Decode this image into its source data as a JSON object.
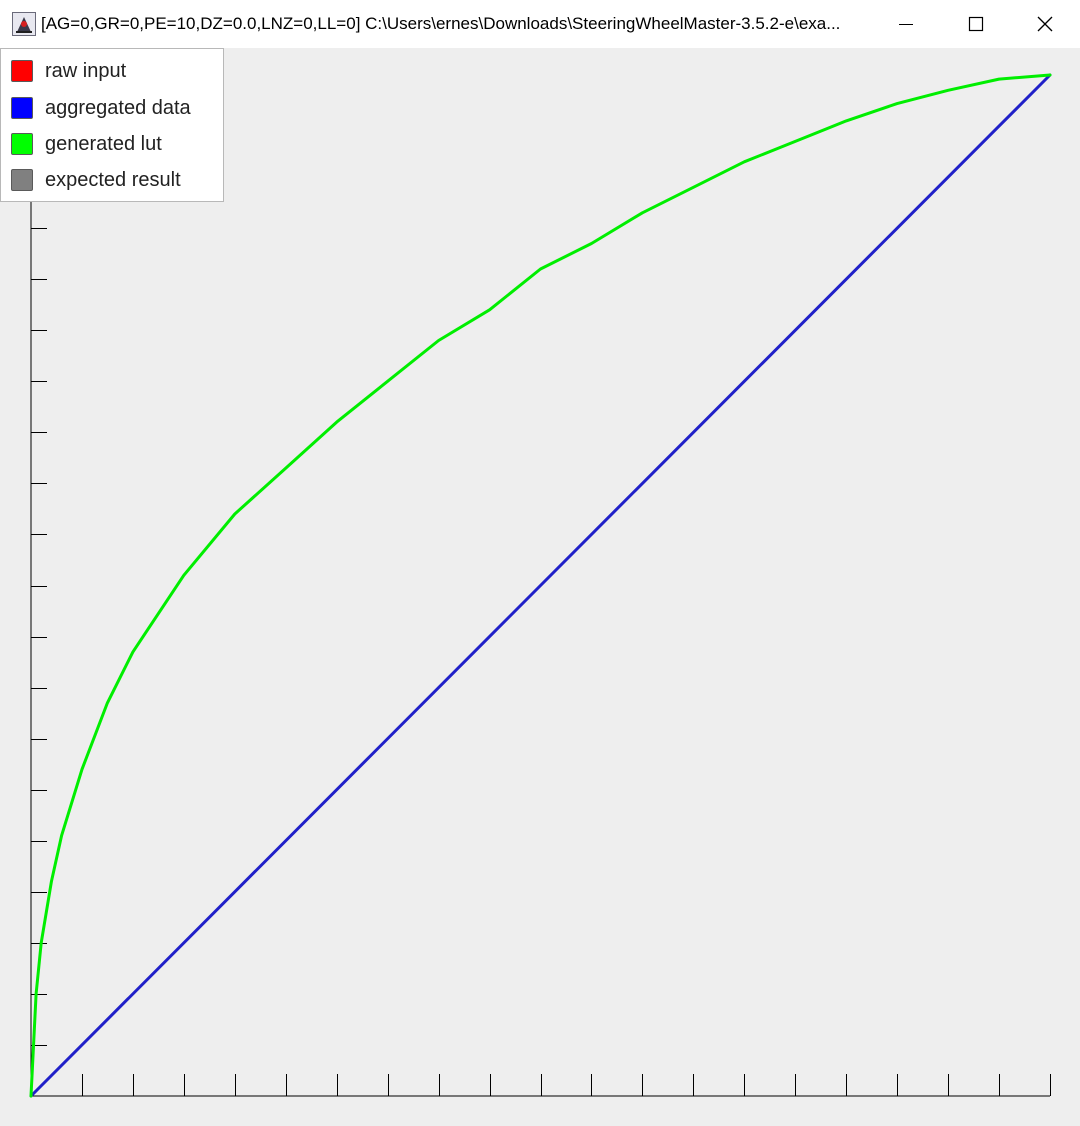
{
  "window": {
    "title": "[AG=0,GR=0,PE=10,DZ=0.0,LNZ=0,LL=0] C:\\Users\\ernes\\Downloads\\SteeringWheelMaster-3.5.2-e\\exa...",
    "app_icon": "java-duke-icon",
    "controls": {
      "minimize_icon": "minimize-icon",
      "maximize_icon": "maximize-icon",
      "close_icon": "close-icon"
    }
  },
  "legend": {
    "items": [
      {
        "label": "raw input",
        "color": "#ff0000"
      },
      {
        "label": "aggregated data",
        "color": "#0000ff"
      },
      {
        "label": "generated lut",
        "color": "#00ff00"
      },
      {
        "label": "expected result",
        "color": "#808080"
      }
    ]
  },
  "chart_data": {
    "type": "line",
    "xlim": [
      0,
      1
    ],
    "ylim": [
      0,
      1
    ],
    "x_tick_count": 20,
    "y_tick_count": 20,
    "grid": false,
    "legend_position": "top-left",
    "series": [
      {
        "name": "aggregated data",
        "color": "#2020c8",
        "x": [
          0,
          1
        ],
        "y": [
          0,
          1
        ]
      },
      {
        "name": "generated lut",
        "color": "#00ee00",
        "x": [
          0,
          0.005,
          0.01,
          0.02,
          0.03,
          0.05,
          0.075,
          0.1,
          0.15,
          0.2,
          0.25,
          0.3,
          0.35,
          0.4,
          0.45,
          0.5,
          0.55,
          0.6,
          0.65,
          0.7,
          0.75,
          0.8,
          0.85,
          0.9,
          0.95,
          1.0
        ],
        "y": [
          0,
          0.1,
          0.15,
          0.21,
          0.255,
          0.32,
          0.385,
          0.435,
          0.51,
          0.57,
          0.615,
          0.66,
          0.7,
          0.74,
          0.77,
          0.81,
          0.835,
          0.865,
          0.89,
          0.915,
          0.935,
          0.955,
          0.972,
          0.985,
          0.996,
          1.0
        ]
      }
    ]
  }
}
